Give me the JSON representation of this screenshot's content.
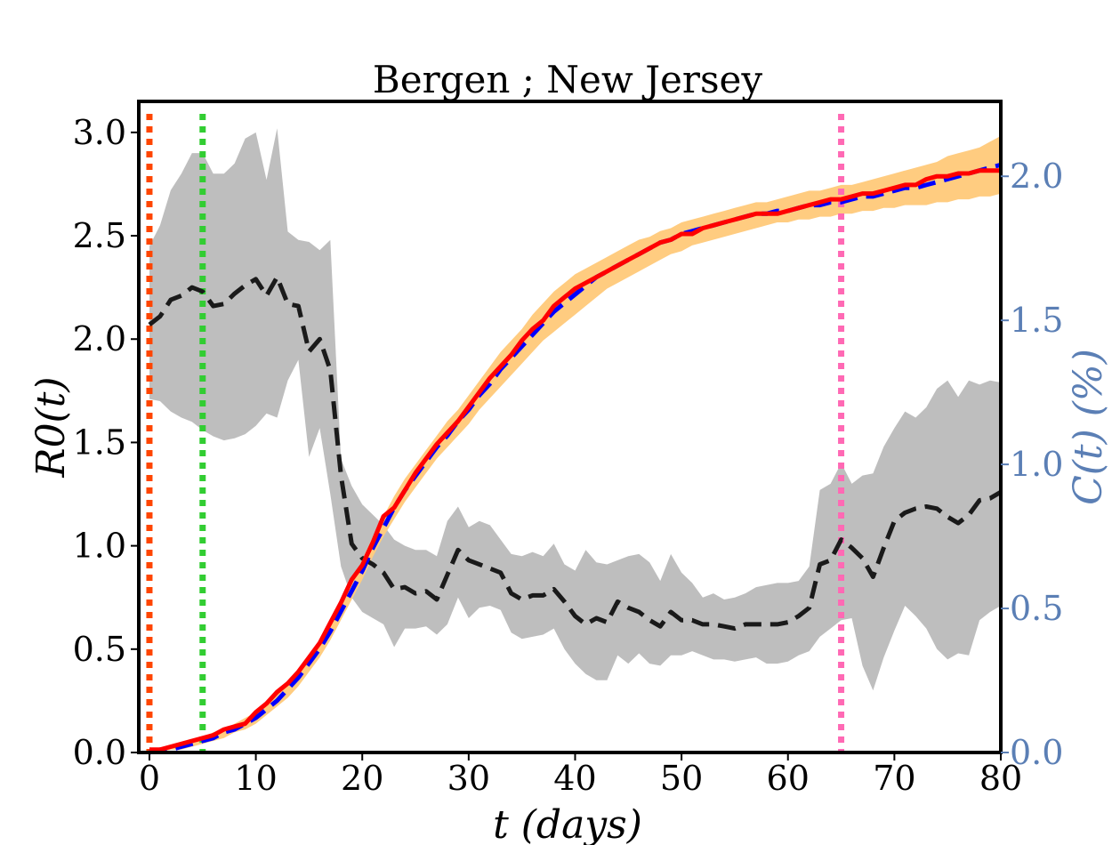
{
  "chart_data": {
    "type": "line",
    "title": "Bergen ; New Jersey",
    "xlabel": "t (days)",
    "ylabel_left": "R0(t)",
    "ylabel_right": "C(t) (%)",
    "xlim": [
      -1,
      80
    ],
    "ylim_left": [
      0,
      3.15
    ],
    "ylim_right": [
      0,
      2.26
    ],
    "x_ticks": [
      0,
      10,
      20,
      30,
      40,
      50,
      60,
      70,
      80
    ],
    "x_tick_labels": [
      "0",
      "10",
      "20",
      "30",
      "40",
      "50",
      "60",
      "70",
      "80"
    ],
    "y_left_ticks": [
      0.0,
      0.5,
      1.0,
      1.5,
      2.0,
      2.5,
      3.0
    ],
    "y_left_tick_labels": [
      "0.0",
      "0.5",
      "1.0",
      "1.5",
      "2.0",
      "2.5",
      "3.0"
    ],
    "y_right_ticks": [
      0.0,
      0.5,
      1.0,
      1.5,
      2.0
    ],
    "y_right_tick_labels": [
      "0.0",
      "0.5",
      "1.0",
      "1.5",
      "2.0"
    ],
    "vertical_lines": [
      {
        "x": 0,
        "color": "#ff4500"
      },
      {
        "x": 5,
        "color": "#32cd32"
      },
      {
        "x": 65,
        "color": "#ff69b4"
      }
    ],
    "colors": {
      "r0_line": "#1a1a1a",
      "r0_band": "#bebebe",
      "cases_line": "#ff0000",
      "fit_line": "#0000ff",
      "fit_band": "#ffcc80",
      "right_axis": "#5b7fb5"
    },
    "r0": {
      "axis": "left",
      "x": [
        0,
        1,
        2,
        3,
        4,
        5,
        6,
        7,
        8,
        9,
        10,
        11,
        12,
        13,
        14,
        15,
        16,
        17,
        18,
        19,
        20,
        21,
        22,
        23,
        24,
        25,
        26,
        27,
        28,
        29,
        30,
        31,
        32,
        33,
        34,
        35,
        36,
        37,
        38,
        39,
        40,
        41,
        42,
        43,
        44,
        45,
        46,
        47,
        48,
        49,
        50,
        51,
        52,
        53,
        54,
        55,
        56,
        57,
        58,
        59,
        60,
        61,
        62,
        63,
        64,
        65,
        66,
        67,
        68,
        69,
        70,
        71,
        72,
        73,
        74,
        75,
        76,
        77,
        78,
        79,
        80
      ],
      "mean": [
        2.07,
        2.11,
        2.19,
        2.21,
        2.25,
        2.23,
        2.16,
        2.17,
        2.22,
        2.26,
        2.29,
        2.21,
        2.3,
        2.17,
        2.16,
        1.94,
        2.0,
        1.85,
        1.34,
        1.01,
        0.94,
        0.91,
        0.87,
        0.79,
        0.8,
        0.77,
        0.78,
        0.74,
        0.86,
        0.98,
        0.93,
        0.91,
        0.89,
        0.87,
        0.77,
        0.74,
        0.76,
        0.76,
        0.79,
        0.73,
        0.66,
        0.62,
        0.65,
        0.63,
        0.73,
        0.7,
        0.68,
        0.64,
        0.61,
        0.68,
        0.64,
        0.64,
        0.62,
        0.62,
        0.61,
        0.6,
        0.62,
        0.62,
        0.62,
        0.62,
        0.63,
        0.66,
        0.7,
        0.91,
        0.93,
        1.03,
        0.99,
        0.94,
        0.85,
        0.99,
        1.12,
        1.16,
        1.18,
        1.19,
        1.18,
        1.14,
        1.11,
        1.15,
        1.22,
        1.23,
        1.26
      ],
      "upper": [
        2.45,
        2.55,
        2.72,
        2.8,
        2.9,
        2.9,
        2.8,
        2.8,
        2.85,
        2.97,
        3.0,
        2.77,
        3.02,
        2.52,
        2.48,
        2.47,
        2.43,
        2.48,
        1.42,
        1.29,
        1.2,
        1.15,
        1.1,
        1.03,
        1.0,
        0.98,
        0.98,
        0.95,
        1.12,
        1.19,
        1.09,
        1.12,
        1.1,
        1.03,
        0.96,
        0.95,
        0.97,
        0.95,
        1.01,
        0.91,
        0.88,
        0.98,
        0.92,
        0.91,
        0.93,
        0.95,
        0.96,
        0.92,
        0.83,
        0.96,
        0.87,
        0.82,
        0.75,
        0.77,
        0.74,
        0.75,
        0.77,
        0.8,
        0.81,
        0.82,
        0.82,
        0.83,
        0.9,
        1.27,
        1.3,
        1.4,
        1.3,
        1.34,
        1.35,
        1.48,
        1.57,
        1.65,
        1.62,
        1.67,
        1.76,
        1.8,
        1.72,
        1.8,
        1.78,
        1.8,
        1.79
      ],
      "lower": [
        1.71,
        1.7,
        1.65,
        1.62,
        1.6,
        1.56,
        1.53,
        1.51,
        1.52,
        1.54,
        1.58,
        1.64,
        1.62,
        1.8,
        1.9,
        1.43,
        1.57,
        1.25,
        0.9,
        0.75,
        0.68,
        0.65,
        0.62,
        0.51,
        0.6,
        0.6,
        0.61,
        0.57,
        0.62,
        0.75,
        0.65,
        0.7,
        0.71,
        0.69,
        0.58,
        0.55,
        0.56,
        0.57,
        0.6,
        0.5,
        0.43,
        0.38,
        0.35,
        0.35,
        0.47,
        0.43,
        0.48,
        0.43,
        0.42,
        0.47,
        0.47,
        0.49,
        0.47,
        0.45,
        0.45,
        0.44,
        0.45,
        0.46,
        0.43,
        0.43,
        0.44,
        0.47,
        0.49,
        0.56,
        0.6,
        0.64,
        0.65,
        0.42,
        0.3,
        0.46,
        0.59,
        0.71,
        0.66,
        0.6,
        0.5,
        0.45,
        0.48,
        0.47,
        0.64,
        0.68,
        0.71
      ]
    },
    "cases": {
      "axis": "right",
      "x": [
        0,
        1,
        2,
        3,
        4,
        5,
        6,
        7,
        8,
        9,
        10,
        11,
        12,
        13,
        14,
        15,
        16,
        17,
        18,
        19,
        20,
        21,
        22,
        23,
        24,
        25,
        26,
        27,
        28,
        29,
        30,
        31,
        32,
        33,
        34,
        35,
        36,
        37,
        38,
        39,
        40,
        41,
        42,
        43,
        44,
        45,
        46,
        47,
        48,
        49,
        50,
        51,
        52,
        53,
        54,
        55,
        56,
        57,
        58,
        59,
        60,
        61,
        62,
        63,
        64,
        65,
        66,
        67,
        68,
        69,
        70,
        71,
        72,
        73,
        74,
        75,
        76,
        77,
        78,
        79,
        80
      ],
      "observed": [
        0.01,
        0.01,
        0.02,
        0.03,
        0.04,
        0.05,
        0.06,
        0.08,
        0.09,
        0.1,
        0.14,
        0.17,
        0.21,
        0.24,
        0.28,
        0.33,
        0.38,
        0.45,
        0.52,
        0.6,
        0.65,
        0.73,
        0.82,
        0.85,
        0.91,
        0.97,
        1.02,
        1.07,
        1.11,
        1.15,
        1.2,
        1.25,
        1.3,
        1.34,
        1.38,
        1.43,
        1.47,
        1.5,
        1.55,
        1.58,
        1.61,
        1.63,
        1.65,
        1.67,
        1.69,
        1.71,
        1.73,
        1.75,
        1.77,
        1.78,
        1.8,
        1.8,
        1.82,
        1.83,
        1.84,
        1.85,
        1.86,
        1.87,
        1.87,
        1.87,
        1.88,
        1.89,
        1.9,
        1.91,
        1.92,
        1.92,
        1.93,
        1.94,
        1.94,
        1.95,
        1.96,
        1.97,
        1.97,
        1.99,
        2.0,
        2.0,
        2.01,
        2.01,
        2.02,
        2.02,
        2.02
      ],
      "fit": [
        0.0,
        0.01,
        0.01,
        0.02,
        0.03,
        0.04,
        0.05,
        0.07,
        0.08,
        0.1,
        0.12,
        0.15,
        0.18,
        0.22,
        0.26,
        0.31,
        0.36,
        0.42,
        0.49,
        0.56,
        0.63,
        0.71,
        0.78,
        0.85,
        0.91,
        0.96,
        1.01,
        1.06,
        1.1,
        1.15,
        1.19,
        1.24,
        1.28,
        1.33,
        1.37,
        1.41,
        1.45,
        1.49,
        1.53,
        1.56,
        1.59,
        1.62,
        1.65,
        1.67,
        1.69,
        1.71,
        1.73,
        1.75,
        1.77,
        1.78,
        1.8,
        1.81,
        1.82,
        1.83,
        1.84,
        1.85,
        1.86,
        1.87,
        1.87,
        1.88,
        1.88,
        1.89,
        1.9,
        1.9,
        1.91,
        1.91,
        1.92,
        1.93,
        1.93,
        1.94,
        1.95,
        1.96,
        1.96,
        1.97,
        1.98,
        1.99,
        2.0,
        2.01,
        2.02,
        2.03,
        2.04
      ],
      "fit_upper": [
        0.01,
        0.01,
        0.02,
        0.03,
        0.04,
        0.05,
        0.07,
        0.08,
        0.1,
        0.12,
        0.14,
        0.17,
        0.21,
        0.25,
        0.29,
        0.34,
        0.39,
        0.45,
        0.52,
        0.59,
        0.67,
        0.75,
        0.82,
        0.89,
        0.95,
        1.0,
        1.05,
        1.1,
        1.15,
        1.19,
        1.24,
        1.29,
        1.34,
        1.39,
        1.43,
        1.47,
        1.52,
        1.56,
        1.6,
        1.63,
        1.66,
        1.68,
        1.7,
        1.72,
        1.74,
        1.76,
        1.78,
        1.79,
        1.81,
        1.82,
        1.84,
        1.85,
        1.86,
        1.87,
        1.88,
        1.89,
        1.9,
        1.91,
        1.91,
        1.92,
        1.93,
        1.94,
        1.95,
        1.95,
        1.96,
        1.97,
        1.97,
        1.98,
        1.99,
        2.0,
        2.01,
        2.02,
        2.03,
        2.04,
        2.05,
        2.07,
        2.08,
        2.09,
        2.1,
        2.12,
        2.14
      ],
      "fit_lower": [
        0.0,
        0.0,
        0.01,
        0.01,
        0.02,
        0.03,
        0.04,
        0.05,
        0.07,
        0.08,
        0.1,
        0.13,
        0.16,
        0.19,
        0.23,
        0.28,
        0.33,
        0.39,
        0.46,
        0.53,
        0.6,
        0.68,
        0.75,
        0.81,
        0.87,
        0.92,
        0.97,
        1.02,
        1.06,
        1.1,
        1.14,
        1.19,
        1.23,
        1.27,
        1.31,
        1.35,
        1.39,
        1.43,
        1.46,
        1.49,
        1.52,
        1.55,
        1.58,
        1.61,
        1.63,
        1.65,
        1.67,
        1.69,
        1.71,
        1.73,
        1.74,
        1.76,
        1.77,
        1.78,
        1.79,
        1.8,
        1.81,
        1.82,
        1.83,
        1.84,
        1.84,
        1.85,
        1.85,
        1.86,
        1.86,
        1.87,
        1.87,
        1.88,
        1.88,
        1.89,
        1.89,
        1.9,
        1.9,
        1.9,
        1.91,
        1.91,
        1.92,
        1.92,
        1.93,
        1.93,
        1.94
      ]
    }
  }
}
